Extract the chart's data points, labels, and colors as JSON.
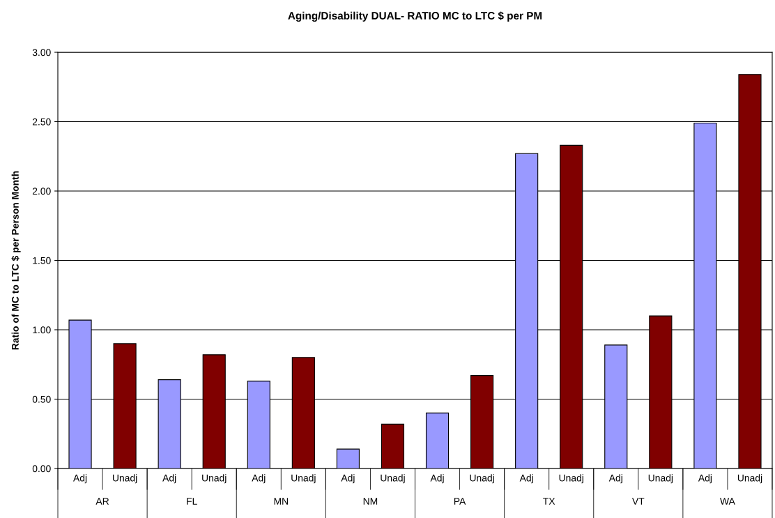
{
  "chart_data": {
    "type": "bar",
    "title": "Aging/Disability DUAL- RATIO MC to LTC $ per PM",
    "ylabel": "Ratio of MC to LTC $ per Person Month",
    "categories": [
      "Adj",
      "Unadj",
      "Adj",
      "Unadj",
      "Adj",
      "Unadj",
      "Adj",
      "Unadj",
      "Adj",
      "Unadj",
      "Adj",
      "Unadj",
      "Adj",
      "Unadj",
      "Adj",
      "Unadj"
    ],
    "values": [
      1.07,
      0.9,
      0.64,
      0.82,
      0.63,
      0.8,
      0.14,
      0.32,
      0.4,
      0.67,
      2.27,
      2.33,
      0.89,
      1.1,
      2.49,
      2.84
    ],
    "colors": [
      "#9999ff",
      "#800000",
      "#9999ff",
      "#800000",
      "#9999ff",
      "#800000",
      "#9999ff",
      "#800000",
      "#9999ff",
      "#800000",
      "#9999ff",
      "#800000",
      "#9999ff",
      "#800000",
      "#9999ff",
      "#800000"
    ],
    "annotations": [
      "AR",
      "FL",
      "MN",
      "NM",
      "PA",
      "TX",
      "VT",
      "WA"
    ],
    "ylim": [
      0,
      3
    ],
    "yticks": [
      {
        "value": 0,
        "label": "0.00"
      },
      {
        "value": 0.5,
        "label": "0.50"
      },
      {
        "value": 1,
        "label": "1.00"
      },
      {
        "value": 1.5,
        "label": "1.50"
      },
      {
        "value": 2,
        "label": "2.00"
      },
      {
        "value": 2.5,
        "label": "2.50"
      },
      {
        "value": 3,
        "label": "3.00"
      }
    ],
    "grid": "y",
    "legend": false
  }
}
